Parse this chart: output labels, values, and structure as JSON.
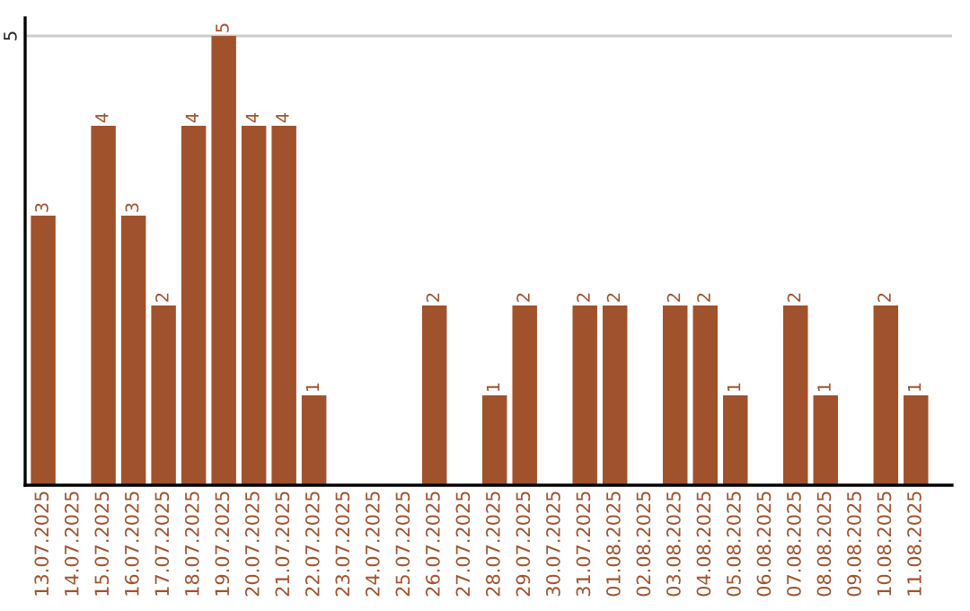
{
  "chart_data": {
    "type": "bar",
    "categories": [
      "13.07.2025",
      "14.07.2025",
      "15.07.2025",
      "16.07.2025",
      "17.07.2025",
      "18.07.2025",
      "19.07.2025",
      "20.07.2025",
      "21.07.2025",
      "22.07.2025",
      "23.07.2025",
      "24.07.2025",
      "25.07.2025",
      "26.07.2025",
      "27.07.2025",
      "28.07.2025",
      "29.07.2025",
      "30.07.2025",
      "31.07.2025",
      "01.08.2025",
      "02.08.2025",
      "03.08.2025",
      "04.08.2025",
      "05.08.2025",
      "06.08.2025",
      "07.08.2025",
      "08.08.2025",
      "09.08.2025",
      "10.08.2025",
      "11.08.2025"
    ],
    "values": [
      3,
      0,
      4,
      3,
      2,
      4,
      5,
      4,
      4,
      1,
      0,
      0,
      0,
      2,
      0,
      1,
      2,
      0,
      2,
      2,
      0,
      2,
      2,
      1,
      0,
      2,
      1,
      0,
      2,
      1
    ],
    "value_labels": [
      "3",
      null,
      "4",
      "3",
      "2",
      "4",
      "5",
      "4",
      "4",
      "1",
      null,
      null,
      null,
      "2",
      null,
      "1",
      "2",
      null,
      "2",
      "2",
      null,
      "2",
      "2",
      "1",
      null,
      "2",
      "1",
      null,
      "2",
      "1"
    ],
    "color": "#a0522d",
    "ylim": [
      0,
      5.2
    ],
    "yticks": [
      5
    ],
    "grid": "y"
  }
}
